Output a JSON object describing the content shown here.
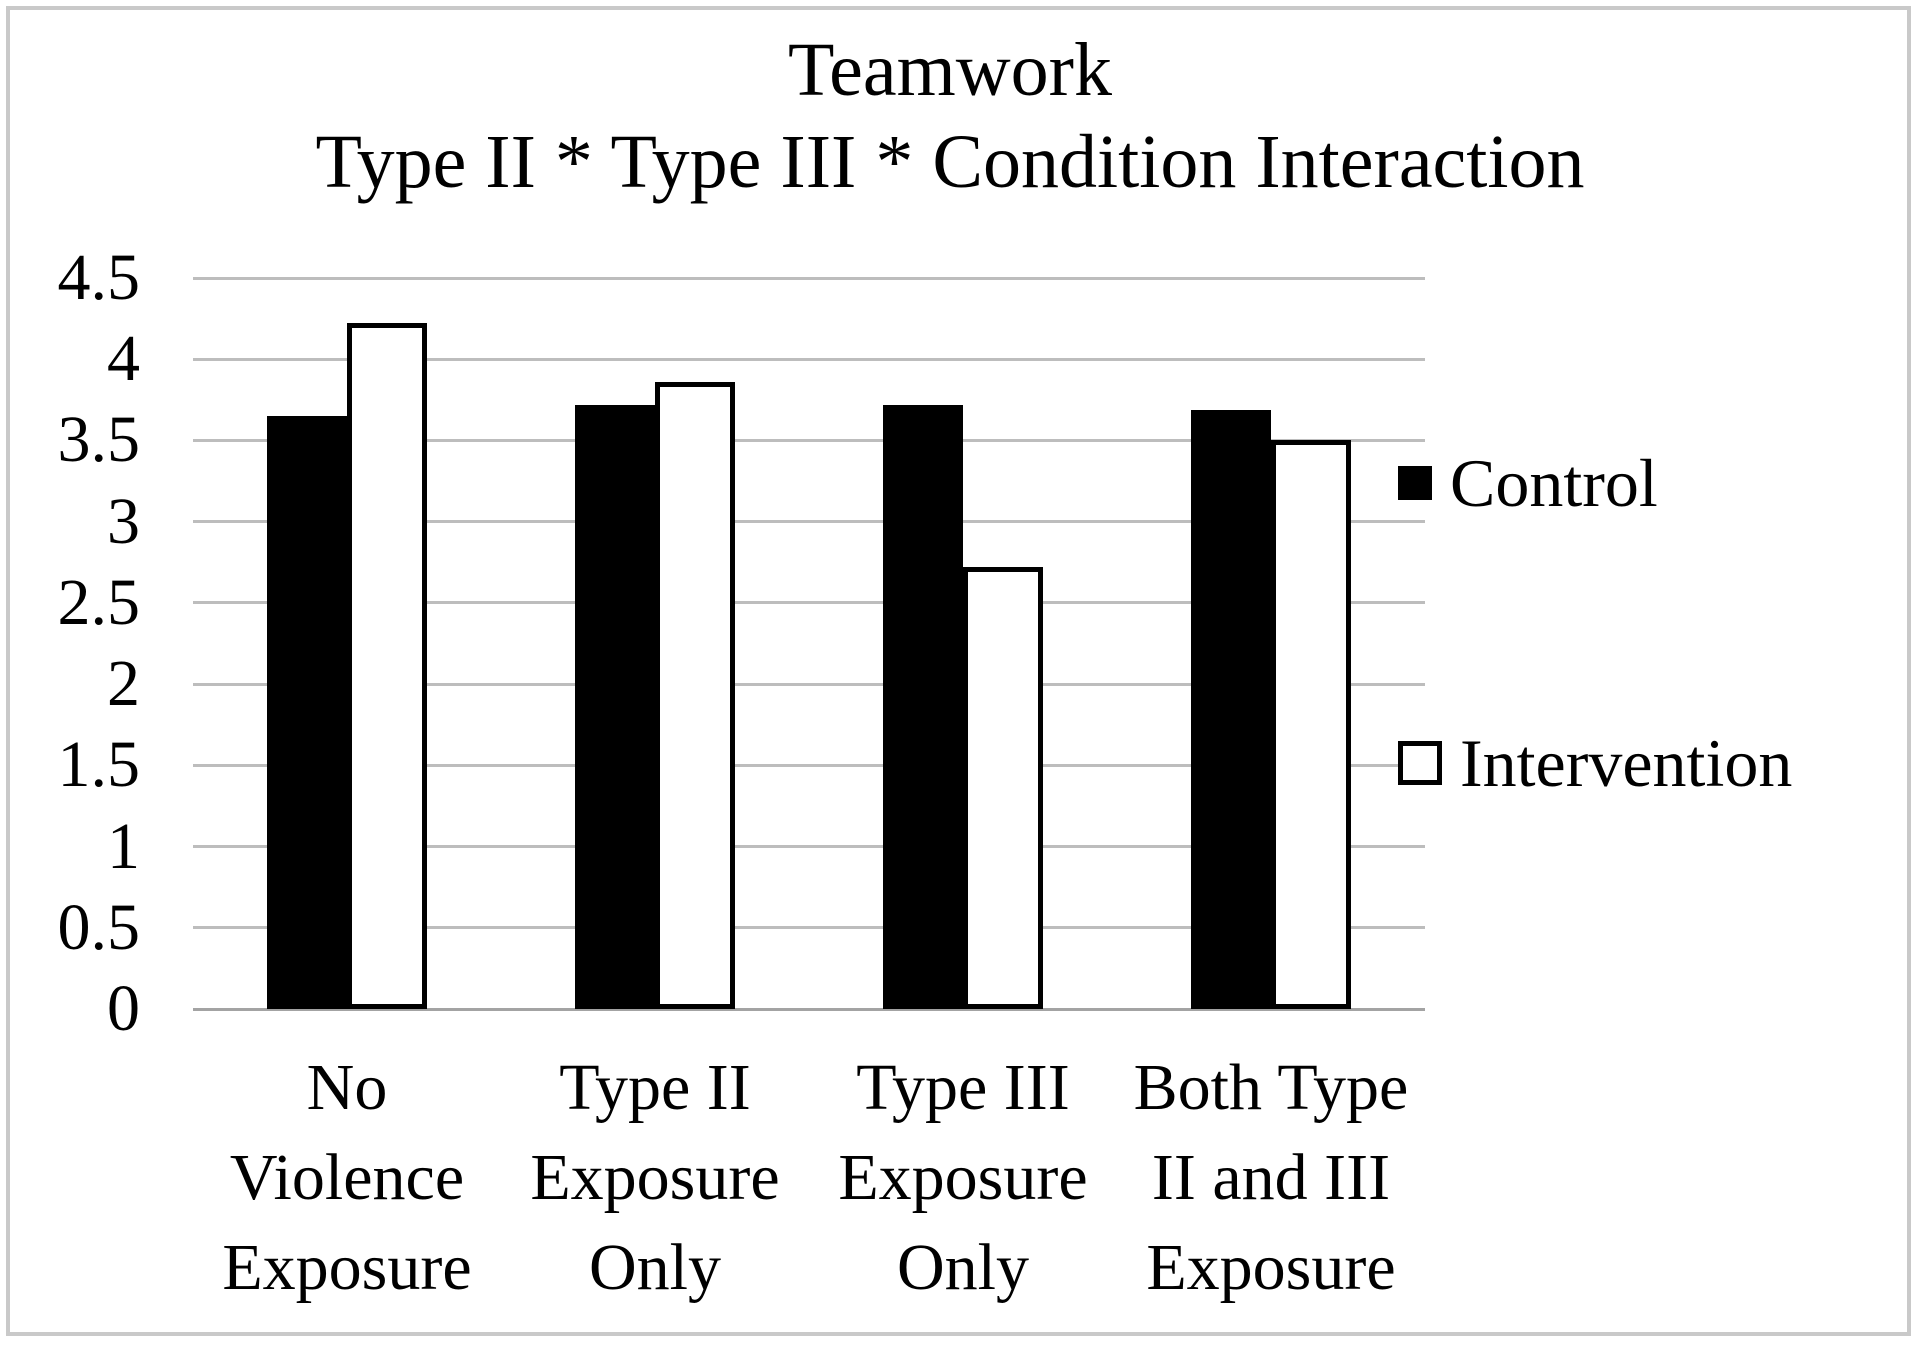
{
  "figure": {
    "background": "#ffffff",
    "border_color": "#c9c9c9"
  },
  "chart_data": {
    "type": "bar",
    "title": "Teamwork",
    "subtitle": "Type II * Type III * Condition Interaction",
    "categories": [
      [
        "No",
        "Violence",
        "Exposure"
      ],
      [
        "Type II",
        "Exposure",
        "Only"
      ],
      [
        "Type III",
        "Exposure",
        "Only"
      ],
      [
        "Both Type",
        "II and III",
        "Exposure"
      ]
    ],
    "series": [
      {
        "name": "Control",
        "fill": "#000000",
        "outline": false,
        "values": [
          3.65,
          3.72,
          3.72,
          3.69
        ]
      },
      {
        "name": "Intervention",
        "fill": "#ffffff",
        "outline": true,
        "values": [
          4.22,
          3.86,
          2.72,
          3.5
        ]
      }
    ],
    "y_axis": {
      "min": 0,
      "max": 4.5,
      "step": 0.5,
      "tick_labels": [
        "0",
        "0.5",
        "1",
        "1.5",
        "2",
        "2.5",
        "3",
        "3.5",
        "4",
        "4.5"
      ]
    },
    "grid": true,
    "legend_position": "right",
    "colors": {
      "gridline": "#bdbdbd",
      "axis_line": "#a3a3a3",
      "bar_black": "#000000",
      "bar_white": "#ffffff",
      "text": "#000000"
    }
  }
}
